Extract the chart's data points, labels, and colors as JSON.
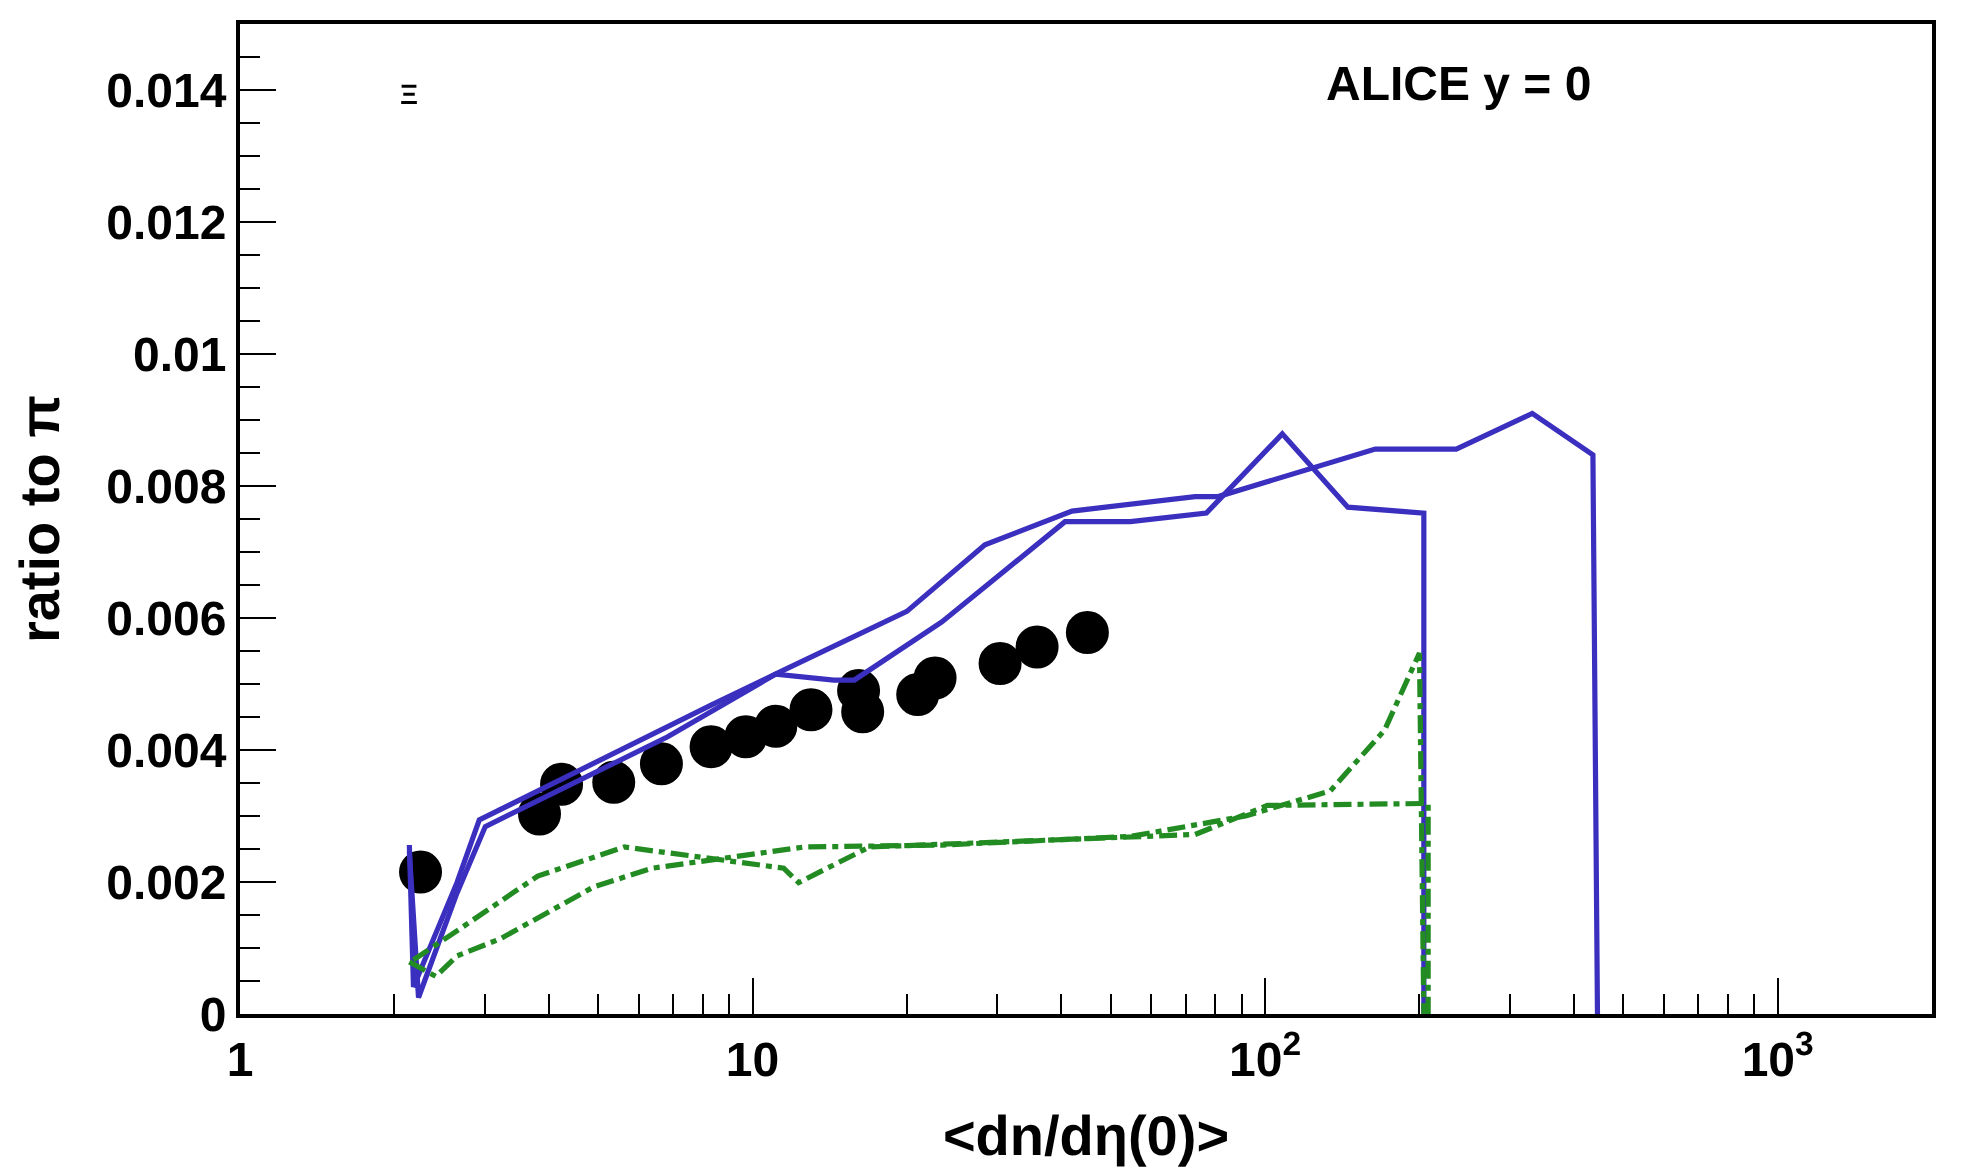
{
  "chart_data": {
    "type": "line",
    "xlabel": "<dn/dη(0)>",
    "ylabel": "ratio to π",
    "annotations": [
      "ALICE y = 0",
      "Ξ"
    ],
    "log": "x",
    "xlim": [
      1,
      2000
    ],
    "xticks": [
      1,
      10,
      {
        "value": 100,
        "label": "10$^{2}$"
      },
      {
        "value": 1000,
        "label": "10$^{3}$"
      }
    ],
    "ylim": [
      0,
      0.015
    ],
    "yticks": [
      0,
      0.002,
      0.004,
      0.006,
      0.008,
      0.01,
      0.012,
      0.014
    ],
    "series": [
      {
        "color": "#3a2fbf",
        "line_style": "solid",
        "marker": "none",
        "x": [
          2.14,
          2.18,
          2.65,
          2.93,
          8.3,
          11.5,
          20.0,
          28.4,
          42.0,
          73,
          81,
          164,
          236,
          332,
          436,
          445
        ],
        "values": [
          0.00256,
          0.00041,
          0.00199,
          0.00294,
          0.00468,
          0.00521,
          0.0061,
          0.00711,
          0.00762,
          0.00784,
          0.00784,
          0.00856,
          0.00856,
          0.0091,
          0.00847,
          0
        ]
      },
      {
        "color": "#3a2fbf",
        "line_style": "solid",
        "marker": "none",
        "x": [
          2.14,
          2.23,
          2.65,
          3.01,
          6.83,
          11.1,
          14.4,
          15.8,
          23.4,
          40.7,
          54.6,
          76.8,
          108,
          145,
          204,
          204
        ],
        "values": [
          0.00246,
          0.00025,
          0.00183,
          0.00284,
          0.0042,
          0.00515,
          0.00506,
          0.00506,
          0.00594,
          0.00746,
          0.00746,
          0.00759,
          0.00879,
          0.00768,
          0.00759,
          0
        ]
      },
      {
        "color": "#228b22",
        "line_style": "dashed",
        "marker": "none",
        "x": [
          2.14,
          2.41,
          2.65,
          3.22,
          4.91,
          6.38,
          12.6,
          23.4,
          54.6,
          91.6,
          134,
          171,
          200,
          204
        ],
        "values": [
          0.00079,
          0.00057,
          0.00088,
          0.00114,
          0.00193,
          0.00221,
          0.00253,
          0.00256,
          0.00269,
          0.003,
          0.00338,
          0.0043,
          0.00547,
          0
        ]
      },
      {
        "color": "#228b22",
        "line_style": "dashed",
        "marker": "none",
        "x": [
          2.18,
          2.65,
          3.81,
          5.62,
          11.5,
          12.3,
          13.5,
          16.9,
          73,
          101,
          208,
          208
        ],
        "values": [
          0.00082,
          0.00126,
          0.00209,
          0.00253,
          0.00221,
          0.00199,
          0.00215,
          0.00253,
          0.00272,
          0.00316,
          0.00319,
          0
        ]
      },
      {
        "type": "scatter",
        "color": "#000000",
        "marker": "circle",
        "x": [
          2.25,
          3.84,
          5.36,
          6.64,
          8.3,
          9.7,
          11.1,
          13.0,
          16.4,
          21.0
        ],
        "values": [
          0.00215,
          0.00303,
          0.00351,
          0.00379,
          0.00405,
          0.0042,
          0.00436,
          0.00461,
          0.00458,
          0.00484
        ]
      },
      {
        "type": "scatter",
        "color": "#000000",
        "marker": "circle",
        "x": [
          4.24,
          16.1,
          22.7,
          30.4,
          35.9,
          45.0
        ],
        "values": [
          0.00348,
          0.0049,
          0.00509,
          0.00531,
          0.00556,
          0.00578
        ]
      }
    ]
  }
}
